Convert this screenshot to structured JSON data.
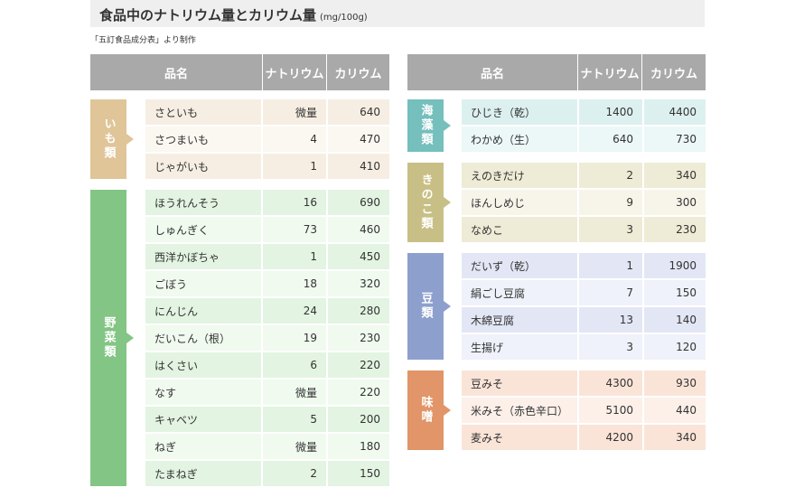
{
  "title": {
    "main": "食品中のナトリウム量とカリウム量",
    "unit": "(mg/100g)",
    "source": "「五訂食品成分表」より制作"
  },
  "headers": {
    "name": "品名",
    "sodium": "ナトリウム",
    "potassium": "カリウム"
  },
  "colors": {
    "header": "#a9a9a9",
    "imo": "#dfc597",
    "yasai": "#83c584",
    "kaisou": "#75bfbd",
    "kinoko": "#c8bf86",
    "mame": "#8d9fcc",
    "miso": "#e19568"
  },
  "groups": [
    {
      "id": "imo",
      "label": "いも類",
      "rows": [
        {
          "name": "さといも",
          "sodium": "微量",
          "potassium": "640"
        },
        {
          "name": "さつまいも",
          "sodium": "4",
          "potassium": "470"
        },
        {
          "name": "じゃがいも",
          "sodium": "1",
          "potassium": "410"
        }
      ]
    },
    {
      "id": "yasai",
      "label": "野菜類",
      "rows": [
        {
          "name": "ほうれんそう",
          "sodium": "16",
          "potassium": "690"
        },
        {
          "name": "しゅんぎく",
          "sodium": "73",
          "potassium": "460"
        },
        {
          "name": "西洋かぼちゃ",
          "sodium": "1",
          "potassium": "450"
        },
        {
          "name": "ごぼう",
          "sodium": "18",
          "potassium": "320"
        },
        {
          "name": "にんじん",
          "sodium": "24",
          "potassium": "280"
        },
        {
          "name": "だいこん（根）",
          "sodium": "19",
          "potassium": "230"
        },
        {
          "name": "はくさい",
          "sodium": "6",
          "potassium": "220"
        },
        {
          "name": "なす",
          "sodium": "微量",
          "potassium": "220"
        },
        {
          "name": "キャベツ",
          "sodium": "5",
          "potassium": "200"
        },
        {
          "name": "ねぎ",
          "sodium": "微量",
          "potassium": "180"
        },
        {
          "name": "たまねぎ",
          "sodium": "2",
          "potassium": "150"
        }
      ]
    },
    {
      "id": "kaisou",
      "label": "海藻類",
      "rows": [
        {
          "name": "ひじき（乾）",
          "sodium": "1400",
          "potassium": "4400"
        },
        {
          "name": "わかめ（生）",
          "sodium": "640",
          "potassium": "730"
        }
      ]
    },
    {
      "id": "kinoko",
      "label": "きのこ類",
      "rows": [
        {
          "name": "えのきだけ",
          "sodium": "2",
          "potassium": "340"
        },
        {
          "name": "ほんしめじ",
          "sodium": "9",
          "potassium": "300"
        },
        {
          "name": "なめこ",
          "sodium": "3",
          "potassium": "230"
        }
      ]
    },
    {
      "id": "mame",
      "label": "豆類",
      "rows": [
        {
          "name": "だいず（乾）",
          "sodium": "1",
          "potassium": "1900"
        },
        {
          "name": "絹ごし豆腐",
          "sodium": "7",
          "potassium": "150"
        },
        {
          "name": "木綿豆腐",
          "sodium": "13",
          "potassium": "140"
        },
        {
          "name": "生揚げ",
          "sodium": "3",
          "potassium": "120"
        }
      ]
    },
    {
      "id": "miso",
      "label": "味噌",
      "rows": [
        {
          "name": "豆みそ",
          "sodium": "4300",
          "potassium": "930"
        },
        {
          "name": "米みそ（赤色辛口）",
          "sodium": "5100",
          "potassium": "440"
        },
        {
          "name": "麦みそ",
          "sodium": "4200",
          "potassium": "340"
        }
      ]
    }
  ]
}
